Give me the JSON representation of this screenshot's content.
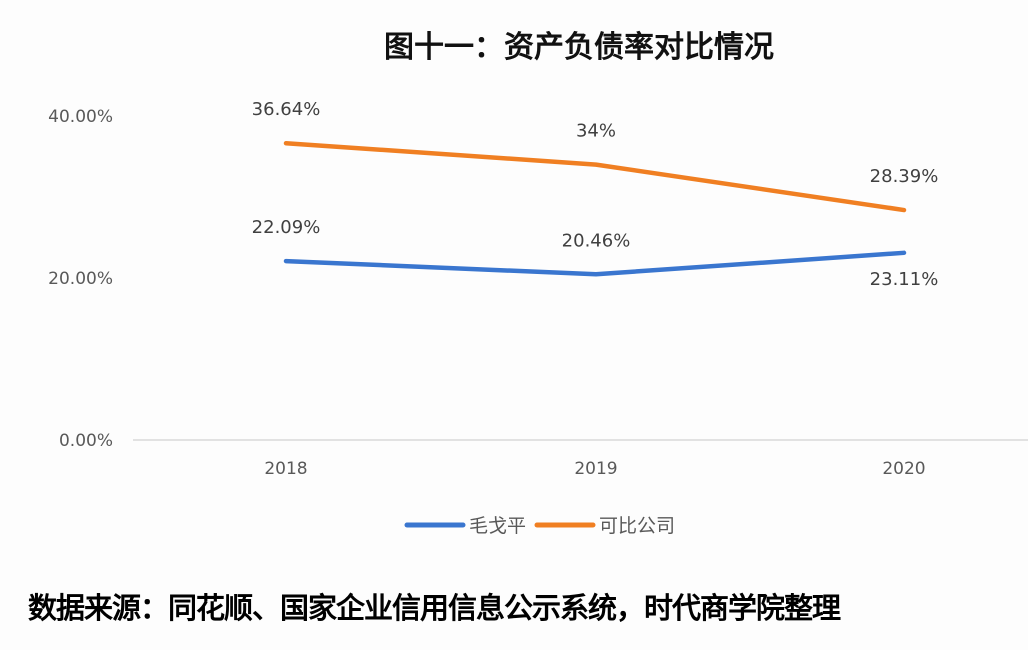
{
  "chart_data": {
    "type": "line",
    "title": "图十一：资产负债率对比情况",
    "categories": [
      "2018",
      "2019",
      "2020"
    ],
    "series": [
      {
        "name": "毛戈平",
        "values": [
          22.09,
          20.46,
          23.11
        ],
        "labels": [
          "22.09%",
          "20.46%",
          "23.11%"
        ],
        "color": "#3a76cf"
      },
      {
        "name": "可比公司",
        "values": [
          36.64,
          34,
          28.39
        ],
        "labels": [
          "36.64%",
          "34%",
          "28.39%"
        ],
        "color": "#f07f22"
      }
    ],
    "yticks": [
      "0.00%",
      "20.00%",
      "40.00%"
    ],
    "ylim": [
      0,
      40
    ],
    "grid": false,
    "legend": "bottom"
  },
  "source": "数据来源：同花顺、国家企业信用信息公示系统，时代商学院整理"
}
